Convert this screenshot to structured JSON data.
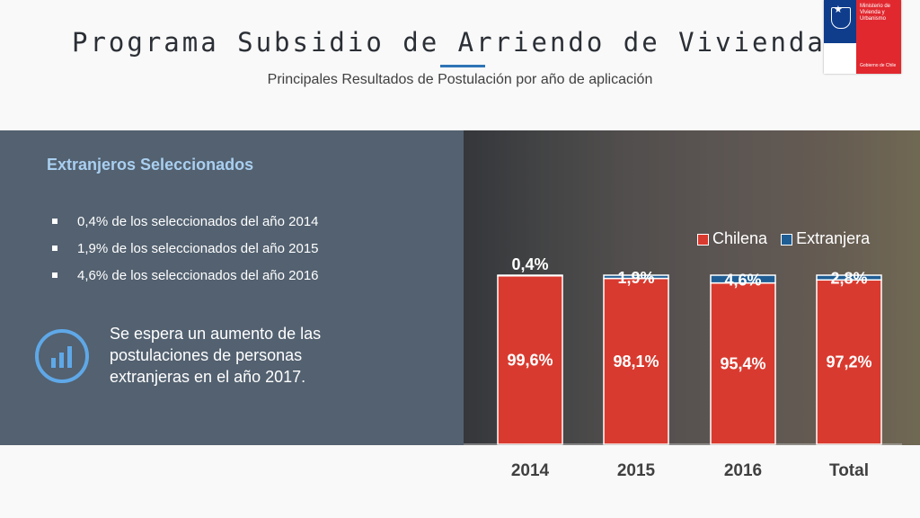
{
  "header": {
    "title": "Programa Subsidio de Arriendo de Vivienda",
    "subtitle": "Principales Resultados de Postulación por año de aplicación"
  },
  "logo": {
    "line1": "Ministerio de Vivienda y Urbanismo",
    "line2": "Gobierno de Chile"
  },
  "panel": {
    "heading": "Extranjeros Seleccionados",
    "bullets": [
      "0,4% de los seleccionados del año 2014",
      "1,9% de los seleccionados del año 2015",
      "4,6% de los seleccionados del año 2016"
    ],
    "note": "Se espera un aumento de las postulaciones de personas extranjeras en el año 2017."
  },
  "colors": {
    "chilena": "#d93a2f",
    "extranjera": "#1f5e94",
    "panel": "#536170",
    "accent": "#2e75b6"
  },
  "chart_data": {
    "type": "bar",
    "stacked": true,
    "categories": [
      "2014",
      "2015",
      "2016",
      "Total"
    ],
    "series": [
      {
        "name": "Chilena",
        "values": [
          99.6,
          98.1,
          95.4,
          97.2
        ],
        "labels": [
          "99,6%",
          "98,1%",
          "95,4%",
          "97,2%"
        ]
      },
      {
        "name": "Extranjera",
        "values": [
          0.4,
          1.9,
          4.6,
          2.8
        ],
        "labels": [
          "0,4%",
          "1,9%",
          "4,6%",
          "2,8%"
        ]
      }
    ],
    "ylim": [
      0,
      100
    ],
    "legend": "top-right"
  }
}
